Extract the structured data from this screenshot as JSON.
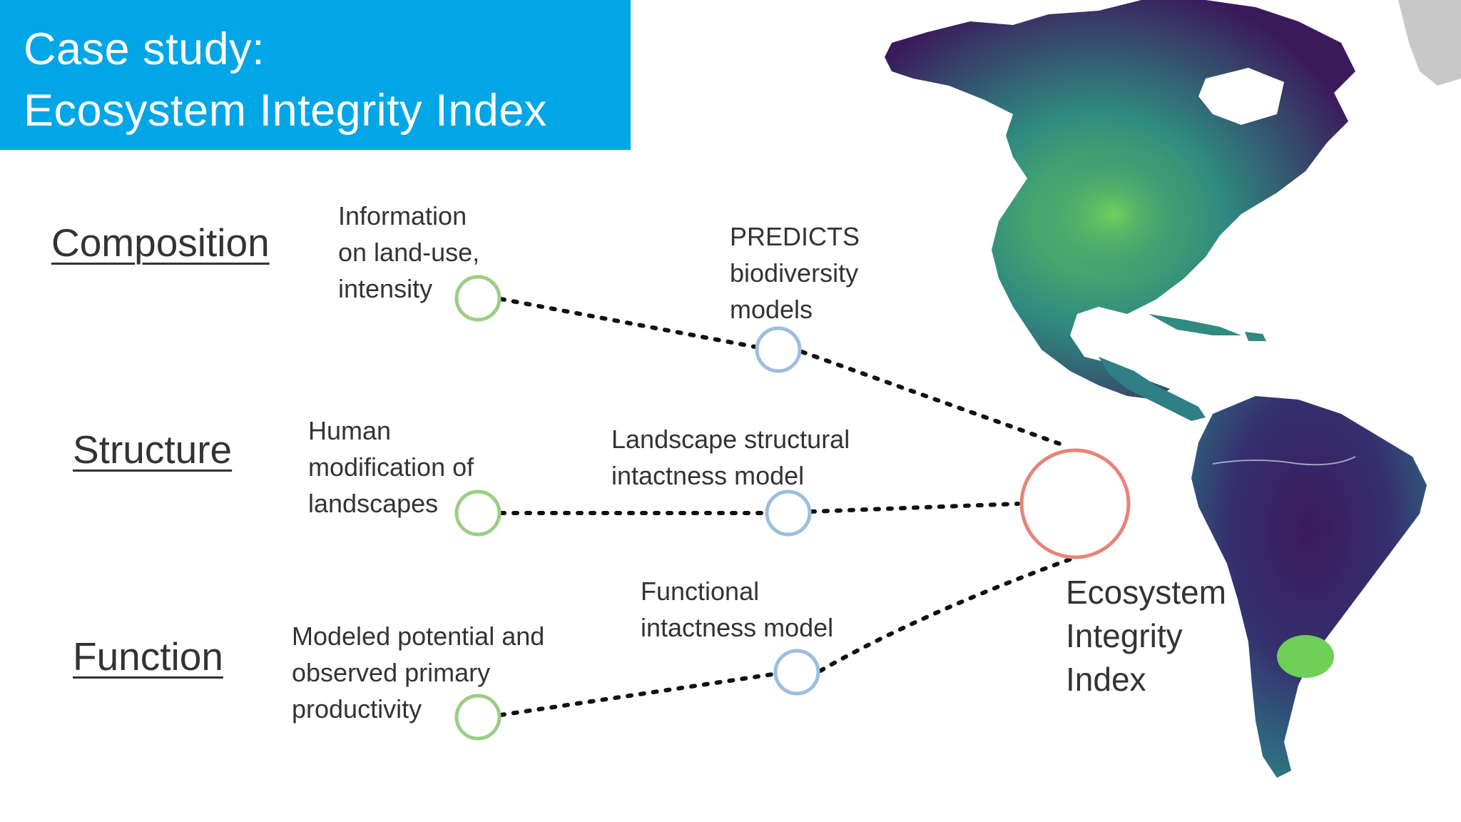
{
  "title": {
    "line1": "Case study:",
    "line2": "Ecosystem Integrity Index"
  },
  "pillars": {
    "composition": "Composition",
    "structure": "Structure",
    "function": "Function"
  },
  "inputs": {
    "composition": [
      "Information",
      "on land-use,",
      "intensity"
    ],
    "structure": [
      "Human",
      "modification of",
      "landscapes"
    ],
    "function": [
      "Modeled potential and",
      "observed primary",
      "productivity"
    ]
  },
  "models": {
    "composition": [
      "PREDICTS",
      "biodiversity",
      "models"
    ],
    "structure": [
      "Landscape structural",
      "intactness model"
    ],
    "function": [
      "Functional",
      "intactness model"
    ]
  },
  "output": [
    "Ecosystem",
    "Integrity",
    "Index"
  ],
  "colors": {
    "title_bg": "#00a6e6",
    "input_node": "#9ccd85",
    "model_node": "#9dbde0",
    "output_node": "#e8837a",
    "map_dark": "#3b1a5c",
    "map_mid": "#2f7f85",
    "map_light": "#7fdc5a",
    "greenland": "#c8c8c8"
  },
  "map": {
    "description_icon": "americas-map-image"
  }
}
